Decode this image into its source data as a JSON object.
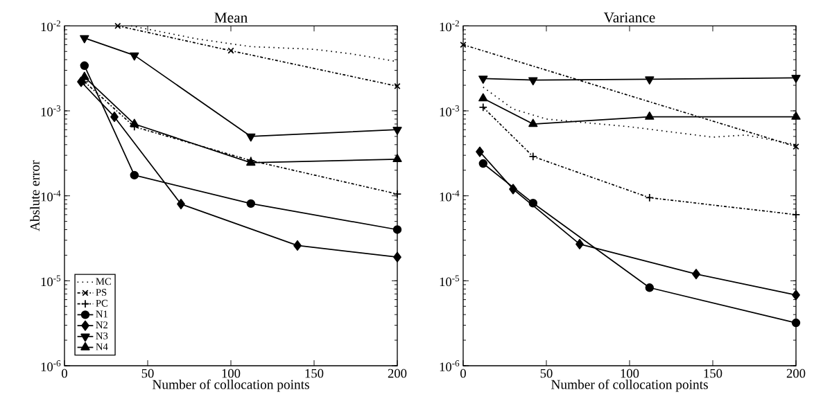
{
  "chart_data": [
    {
      "type": "line",
      "title": "Mean",
      "xlabel": "Number of collocation points",
      "ylabel": "Abslute error",
      "log": "y",
      "grid": false,
      "legend": "bottom left",
      "xlim": [
        0,
        200
      ],
      "xticks": [
        0,
        50,
        100,
        150,
        200
      ],
      "ylim": [
        1e-06,
        0.01
      ],
      "yticks": [
        {
          "value": 1e-06,
          "label": "10$^{-6}$"
        },
        {
          "value": 1e-05,
          "label": "10$^{-5}$"
        },
        {
          "value": 0.0001,
          "label": "10$^{-4}$"
        },
        {
          "value": 0.001,
          "label": "10$^{-3}$"
        },
        {
          "value": 0.01,
          "label": "10$^{-2}$"
        }
      ],
      "series": [
        {
          "name": "MC",
          "color": "#000000",
          "marker": "none",
          "line_style": "dotted",
          "x": [
            40,
            80,
            112,
            150,
            172,
            200
          ],
          "values": [
            0.01,
            0.007,
            0.0057,
            0.0053,
            0.0047,
            0.0038
          ]
        },
        {
          "name": "PS",
          "color": "#000000",
          "marker": "cross",
          "line_style": "dashed",
          "x": [
            32,
            100,
            200
          ],
          "values": [
            0.01,
            0.0051,
            0.00195
          ]
        },
        {
          "name": "PC",
          "color": "#000000",
          "marker": "plus",
          "line_style": "dashed",
          "x": [
            12,
            42,
            112,
            200
          ],
          "values": [
            0.0022,
            0.00065,
            0.00026,
            0.000105
          ]
        },
        {
          "name": "N1",
          "color": "#000000",
          "marker": "circle",
          "line_style": "solid",
          "x": [
            12,
            42,
            112,
            200
          ],
          "values": [
            0.0034,
            0.000175,
            8.1e-05,
            4e-05
          ]
        },
        {
          "name": "N2",
          "color": "#000000",
          "marker": "diamond",
          "line_style": "solid",
          "x": [
            10,
            30,
            70,
            140,
            200
          ],
          "values": [
            0.0022,
            0.00085,
            8e-05,
            2.6e-05,
            1.9e-05
          ]
        },
        {
          "name": "N3",
          "color": "#000000",
          "marker": "triangle-down",
          "line_style": "solid",
          "x": [
            12,
            42,
            112,
            200
          ],
          "values": [
            0.0072,
            0.0045,
            0.0005,
            0.0006
          ]
        },
        {
          "name": "N4",
          "color": "#000000",
          "marker": "triangle",
          "line_style": "solid",
          "x": [
            12,
            42,
            112,
            200
          ],
          "values": [
            0.0025,
            0.0007,
            0.000245,
            0.00027
          ]
        }
      ]
    },
    {
      "type": "line",
      "title": "Variance",
      "xlabel": "Number of collocation points",
      "log": "y",
      "grid": false,
      "xlim": [
        0,
        200
      ],
      "xticks": [
        0,
        50,
        100,
        150,
        200
      ],
      "ylim": [
        1e-06,
        0.01
      ],
      "yticks": [
        {
          "value": 1e-06,
          "label": "10$^{-6}$"
        },
        {
          "value": 1e-05,
          "label": "10$^{-5}$"
        },
        {
          "value": 0.0001,
          "label": "10$^{-4}$"
        },
        {
          "value": 0.001,
          "label": "10$^{-3}$"
        },
        {
          "value": 0.01,
          "label": "10$^{-2}$"
        }
      ],
      "series": [
        {
          "color": "#000000",
          "marker": "none",
          "line_style": "dotted",
          "x": [
            12,
            30,
            50,
            100,
            150,
            170,
            200
          ],
          "values": [
            0.0019,
            0.00105,
            0.0008,
            0.00065,
            0.00049,
            0.00052,
            0.0004
          ]
        },
        {
          "color": "#000000",
          "marker": "cross",
          "line_style": "dashed",
          "x": [
            0,
            200
          ],
          "values": [
            0.006,
            0.00038
          ]
        },
        {
          "color": "#000000",
          "marker": "plus",
          "line_style": "dashed",
          "x": [
            12,
            42,
            112,
            200
          ],
          "values": [
            0.0011,
            0.00029,
            9.5e-05,
            6e-05
          ]
        },
        {
          "color": "#000000",
          "marker": "circle",
          "line_style": "solid",
          "x": [
            12,
            42,
            112,
            200
          ],
          "values": [
            0.00024,
            8.2e-05,
            8.3e-06,
            3.2e-06
          ]
        },
        {
          "color": "#000000",
          "marker": "diamond",
          "line_style": "solid",
          "x": [
            10,
            30,
            70,
            140,
            200
          ],
          "values": [
            0.00033,
            0.00012,
            2.7e-05,
            1.2e-05,
            6.8e-06
          ]
        },
        {
          "color": "#000000",
          "marker": "triangle-down",
          "line_style": "solid",
          "x": [
            12,
            42,
            112,
            200
          ],
          "values": [
            0.0024,
            0.0023,
            0.00235,
            0.00245
          ]
        },
        {
          "color": "#000000",
          "marker": "triangle",
          "line_style": "solid",
          "x": [
            12,
            42,
            112,
            200
          ],
          "values": [
            0.0014,
            0.0007,
            0.00085,
            0.00085
          ]
        }
      ]
    }
  ]
}
